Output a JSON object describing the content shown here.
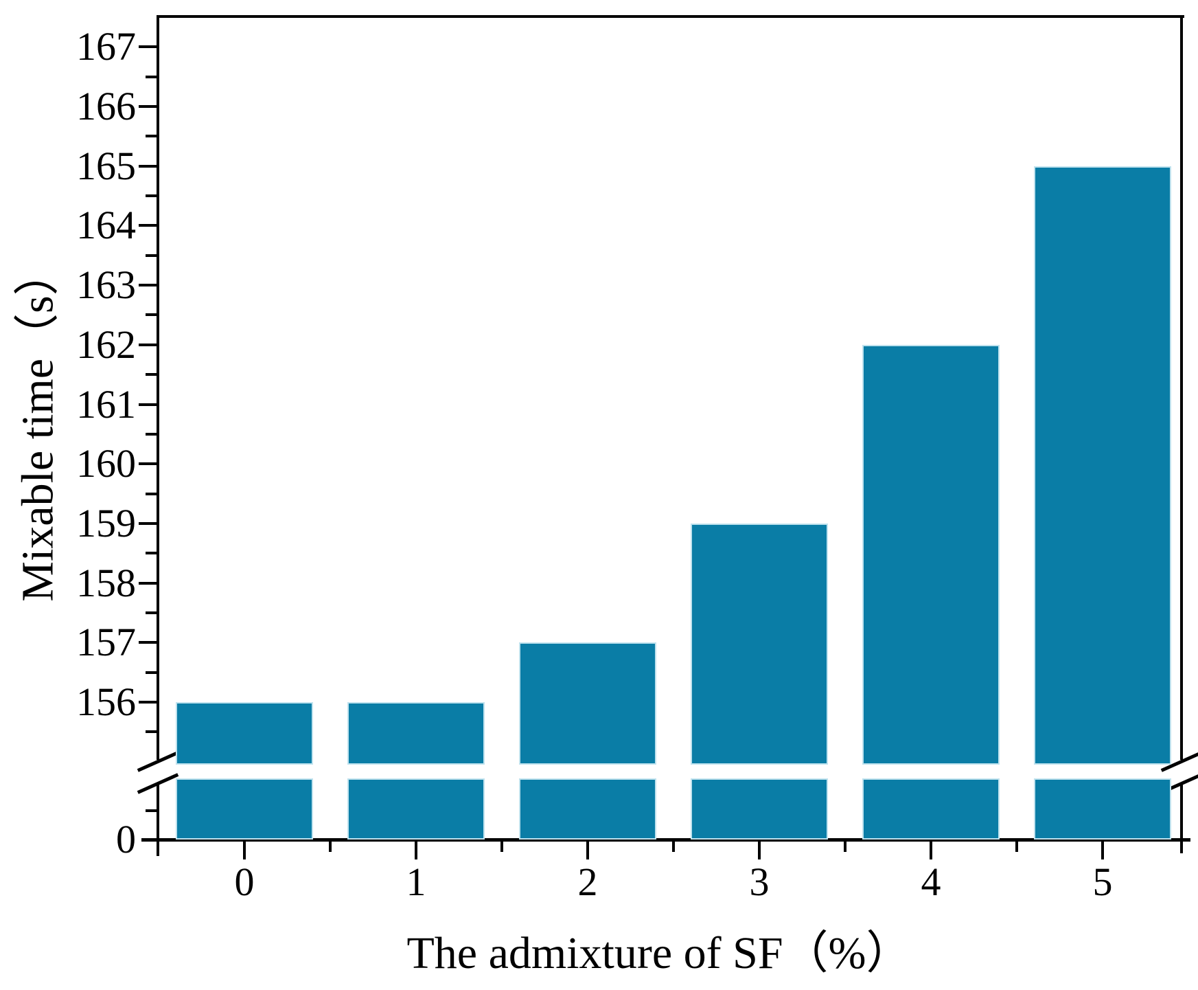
{
  "figure": {
    "xlabel": "The admixture of SF（%）",
    "ylabel": "Mixable time（s）"
  },
  "chart_data": {
    "type": "bar",
    "title": "",
    "categories": [
      "0",
      "1",
      "2",
      "3",
      "4",
      "5"
    ],
    "values": [
      156,
      156,
      157,
      159,
      162,
      165
    ],
    "xlabel": "The admixture of SF（%）",
    "ylabel": "Mixable time（s）",
    "series_name": "Mixable time",
    "bar_color": "#0a7da6",
    "bar_edge_color": "#bfe2ee",
    "axis_color": "#000000",
    "background_color": "#ffffff",
    "grid": false,
    "legend": null,
    "y_axis": {
      "broken": true,
      "break_symbol": "double-diagonal-slash",
      "upper_range": [
        155.0,
        167.5
      ],
      "upper_major_ticks": [
        156,
        157,
        158,
        159,
        160,
        161,
        162,
        163,
        164,
        165,
        166,
        167
      ],
      "minor_tick_step": 0.5,
      "lower_segment_ticks": [
        "0"
      ],
      "tick_direction": "out"
    },
    "x_axis": {
      "major_ticks": [
        0,
        1,
        2,
        3,
        4,
        5
      ],
      "minor_tick_step": 0.5,
      "range": [
        -0.5,
        5.5
      ],
      "tick_direction": "out"
    }
  }
}
